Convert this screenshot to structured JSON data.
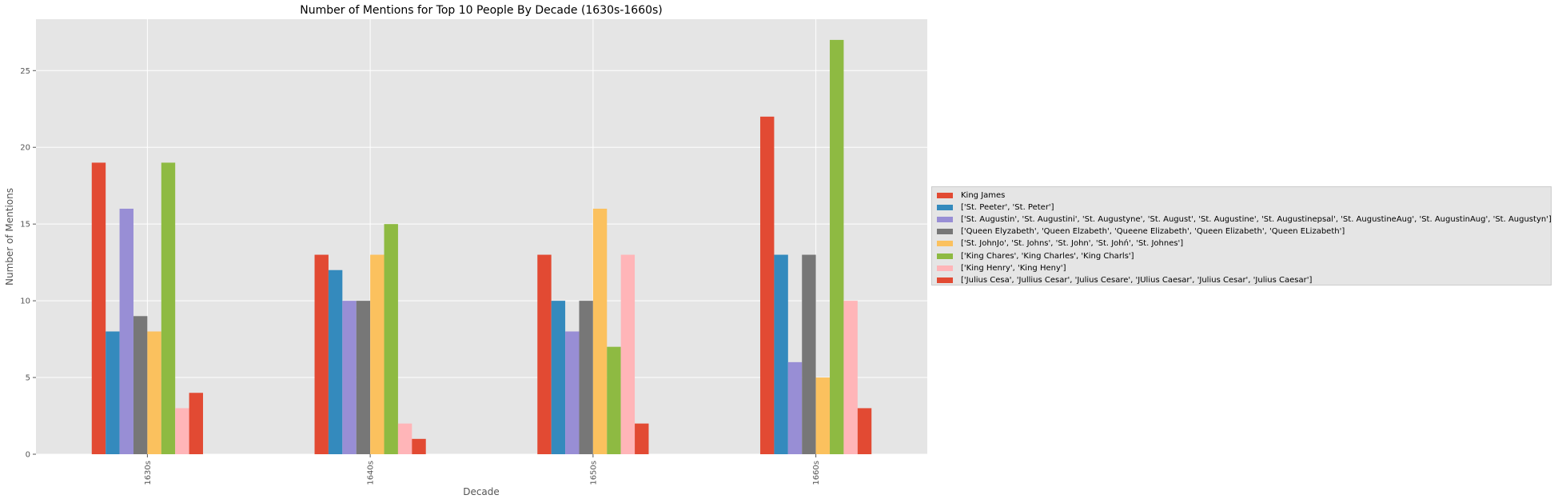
{
  "chart_data": {
    "type": "bar",
    "title": "Number of Mentions for Top 10 People By Decade (1630s-1660s)",
    "xlabel": "Decade",
    "ylabel": "Number of Mentions",
    "categories": [
      "1630s",
      "1640s",
      "1650s",
      "1660s"
    ],
    "ylim": [
      0,
      28.35
    ],
    "yticks": [
      0,
      5,
      10,
      15,
      20,
      25
    ],
    "grid": true,
    "legend_position": "right",
    "series": [
      {
        "name": "King James",
        "color": "#E24A33",
        "values": [
          19,
          13,
          13,
          22
        ]
      },
      {
        "name": "['St. Peeter', 'St. Peter']",
        "color": "#348ABD",
        "values": [
          8,
          12,
          10,
          13
        ]
      },
      {
        "name": "['St. Augustin', 'St. Augustini', 'St. Augustyne', 'St. August', 'St. Augustine', 'St. Augustinepsal', 'St. AugustineAug', 'St. AugustinAug', 'St. Augustyn']",
        "color": "#988ED5",
        "values": [
          16,
          10,
          8,
          6
        ]
      },
      {
        "name": "['Queen Elyzabeth', 'Queen Elzabeth', 'Queene Elizabeth', 'Queen Elizabeth', 'Queen ELizabeth']",
        "color": "#777777",
        "values": [
          9,
          10,
          10,
          13
        ]
      },
      {
        "name": "['St. JohnJo', 'St. Johns', 'St. John', 'St. Johń', 'St. Johnes']",
        "color": "#FBC15E",
        "values": [
          8,
          13,
          16,
          5
        ]
      },
      {
        "name": "['King Chares', 'King Charles', 'King Charls']",
        "color": "#8EBA42",
        "values": [
          19,
          15,
          7,
          27
        ]
      },
      {
        "name": "['King Henry', 'King Heny']",
        "color": "#FFB5B8",
        "values": [
          3,
          2,
          13,
          10
        ]
      },
      {
        "name": "['Julius Cesa', 'Jullius Cesar', 'Julius Cesare', 'JUlius Caesar', 'Julius Cesar', 'Julius Caesar']",
        "color": "#E24A33",
        "values": [
          4,
          1,
          2,
          3
        ]
      }
    ]
  }
}
